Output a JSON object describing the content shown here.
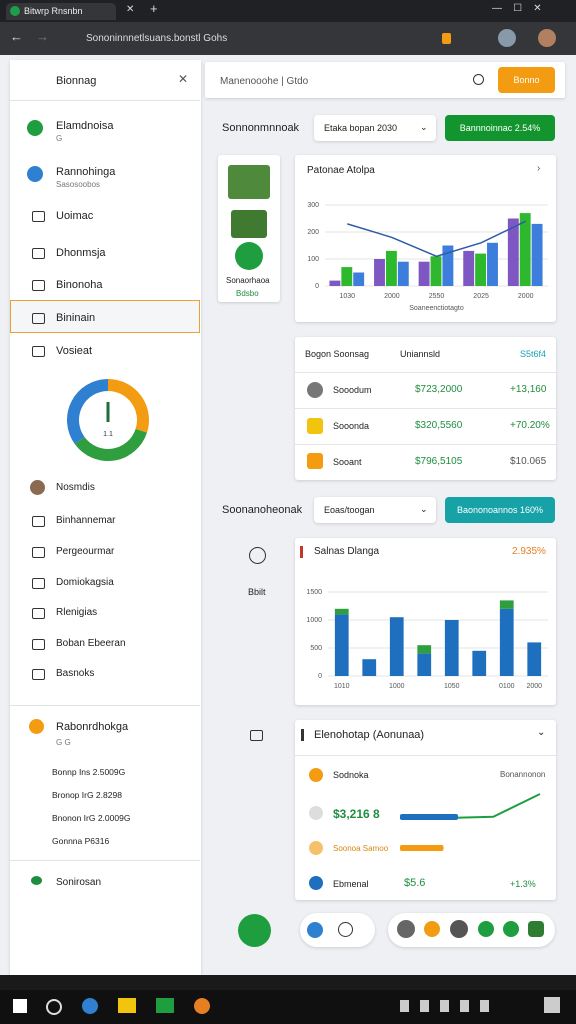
{
  "browser": {
    "tab_title": "Bitwrp Rnsnbn",
    "address": "Sononinnnetlsuans.bonstl Gohs"
  },
  "sidebar": {
    "title": "Bionnag",
    "items": [
      {
        "label": "Elamdnoisa",
        "sub": "G"
      },
      {
        "label": "Rannohinga",
        "sub": "Sasosoobos"
      },
      {
        "label": "Uoimac"
      },
      {
        "label": "Dhonmsja"
      },
      {
        "label": "Binonoha"
      },
      {
        "label": "Bininain"
      },
      {
        "label": "Vosieat"
      }
    ],
    "gauge": {
      "label": "1.1",
      "values": [
        30,
        35,
        35
      ],
      "colors": [
        "#f39c12",
        "#2e9e3e",
        "#2f80d1"
      ]
    },
    "items2": [
      "Nosmdis",
      "Binhannemar",
      "Pergeourmar",
      "Domiokagsia",
      "Rlenigias",
      "Boban Ebeeran",
      "Basnoks"
    ],
    "group": {
      "title": "Rabonrdhokga",
      "sub": "G G",
      "lines": [
        "Bonnp Ins 2.5009G",
        "Bronop IrG 2.8298",
        "Bnonon IrG 2.0009G",
        "Gonnna P6316"
      ]
    },
    "footer": "Sonirosan"
  },
  "topbar": {
    "search": "Manenooohe | Gtdo",
    "button": "Bonno"
  },
  "section1": {
    "title": "Sonnonmnnoak",
    "select": "Etaka bopan 2030",
    "button": "Bannnoinnac 2.54%"
  },
  "image_card": {
    "title": "Sonaorhaoa",
    "sub": "Bdsbo"
  },
  "chart1": {
    "type": "bar",
    "title": "Patonae Atolpa",
    "x_title": "Soaneenctiotagto",
    "categories": [
      "1030",
      "2000",
      "2550",
      "2025",
      "2000"
    ],
    "series": [
      {
        "color": "#7e57c2",
        "values": [
          20,
          100,
          90,
          130,
          250
        ]
      },
      {
        "color": "#2eb82e",
        "values": [
          70,
          130,
          110,
          120,
          270
        ]
      },
      {
        "color": "#3d7ddb",
        "values": [
          50,
          90,
          150,
          160,
          230
        ]
      }
    ],
    "line": {
      "color": "#2e5aa8",
      "values": [
        230,
        180,
        110,
        160,
        240
      ]
    },
    "ylim": [
      0,
      300
    ],
    "yticks": [
      0,
      100,
      200,
      300
    ]
  },
  "table": {
    "header": [
      "Bogon Soonsag",
      "Uniannsld",
      "S5t6f4"
    ],
    "rows": [
      [
        "Sooodum",
        "$723,2000",
        "+13,160"
      ],
      [
        "Sooonda",
        "$320,5560",
        "+70.20%"
      ],
      [
        "Sooant",
        "$796,5105",
        "$10.065"
      ]
    ]
  },
  "section2": {
    "title": "Soonanoheonak",
    "select": "Eoas/toogan",
    "button": "Baononoannos 160%",
    "side_label": "Bbilt"
  },
  "chart2": {
    "type": "bar",
    "title": "Salnas Dlanga",
    "badge": "2.935%",
    "categories": [
      "1010",
      null,
      "1000",
      null,
      "1050",
      null,
      "0100",
      "2000"
    ],
    "series": [
      {
        "color": "#1f6fbf",
        "values": [
          1100,
          300,
          1050,
          400,
          1000,
          450,
          1200,
          600
        ]
      },
      {
        "color": "#2e9e3e",
        "values": [
          100,
          0,
          0,
          150,
          0,
          0,
          150,
          0
        ]
      }
    ],
    "ylim": [
      0,
      1500
    ],
    "yticks": [
      0,
      500,
      1000,
      1500
    ]
  },
  "card": {
    "title": "Elenohotap (Aonunaa)",
    "row1": "Sodnoka",
    "row1_right": "Bonannonon",
    "row2": "$3,216 8",
    "row3": "Soonoa Samoo",
    "row4": "Ebmenal",
    "row4_value": "$5.6",
    "row4_change": "+1.3%",
    "trend": [
      20,
      20,
      22,
      60
    ],
    "bars": [
      40,
      30
    ]
  }
}
